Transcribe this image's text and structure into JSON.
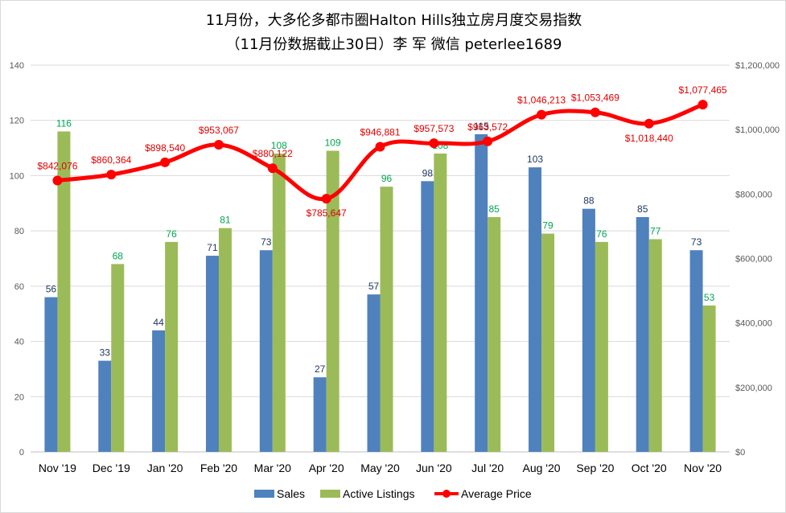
{
  "chart_data": {
    "type": "bar",
    "title": "11月份，大多伦多都市圈Halton Hills独立房月度交易指数",
    "subtitle": "（11月份数据截止30日）李 军  微信  peterlee1689",
    "categories": [
      "Nov '19",
      "Dec '19",
      "Jan '20",
      "Feb '20",
      "Mar '20",
      "Apr '20",
      "May '20",
      "Jun '20",
      "Jul '20",
      "Aug '20",
      "Sep '20",
      "Oct '20",
      "Nov '20"
    ],
    "series": [
      {
        "name": "Sales",
        "type": "bar",
        "axis": "left",
        "color": "#4f81bd",
        "values": [
          56,
          33,
          44,
          71,
          73,
          27,
          57,
          98,
          115,
          103,
          88,
          85,
          73
        ]
      },
      {
        "name": "Active Listings",
        "type": "bar",
        "axis": "left",
        "color": "#9bbb59",
        "values": [
          116,
          68,
          76,
          81,
          108,
          109,
          96,
          108,
          85,
          79,
          76,
          77,
          53
        ]
      },
      {
        "name": "Average Price",
        "type": "line",
        "axis": "right",
        "color": "#ff0000",
        "values": [
          842076,
          860364,
          898540,
          953067,
          880122,
          785647,
          946881,
          957573,
          963572,
          1046213,
          1053469,
          1018440,
          1077465
        ],
        "labels": [
          "$842,076",
          "$860,364",
          "$898,540",
          "$953,067",
          "$880,122",
          "$785,647",
          "$946,881",
          "$957,573",
          "$963,572",
          "$1,046,213",
          "$1,053,469",
          "$1,018,440",
          "$1,077,465"
        ]
      }
    ],
    "ylim_left": [
      0,
      140
    ],
    "yticks_left": [
      "0",
      "20",
      "40",
      "60",
      "80",
      "100",
      "120",
      "140"
    ],
    "ylim_right": [
      0,
      1200000
    ],
    "yticks_right": [
      "$0",
      "$200,000",
      "$400,000",
      "$600,000",
      "$800,000",
      "$1,000,000",
      "$1,200,000"
    ],
    "grid": true,
    "legend": "bottom"
  }
}
